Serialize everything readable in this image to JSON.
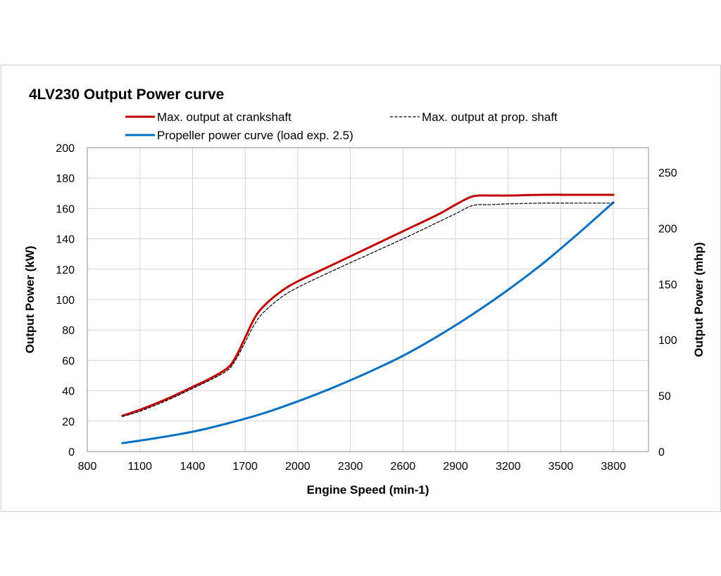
{
  "chart_data": {
    "type": "line",
    "title": "4LV230 Output Power curve",
    "xlabel": "Engine Speed (min-1)",
    "ylabel": "Output Power (kW)",
    "y2label": "Output Power (mhp)",
    "xlim": [
      800,
      4000
    ],
    "ylim": [
      0,
      200
    ],
    "y2lim": [
      0,
      272
    ],
    "xticks": [
      "800",
      "1100",
      "1400",
      "1700",
      "2000",
      "2300",
      "2600",
      "2900",
      "3200",
      "3500",
      "3800"
    ],
    "yticks": [
      "0",
      "20",
      "40",
      "60",
      "80",
      "100",
      "120",
      "140",
      "160",
      "180",
      "200"
    ],
    "y2ticks": [
      "0",
      "50",
      "100",
      "150",
      "200",
      "250"
    ],
    "grid": true,
    "legend_position": "top",
    "series": [
      {
        "name": "Max. output at crankshaft",
        "color": "#c00000",
        "style": "solid",
        "x": [
          1000,
          1100,
          1200,
          1300,
          1400,
          1500,
          1600,
          1650,
          1700,
          1750,
          1800,
          1900,
          2000,
          2200,
          2400,
          2600,
          2800,
          2900,
          3000,
          3100,
          3200,
          3400,
          3600,
          3800
        ],
        "y": [
          23.5,
          27.5,
          32,
          37,
          42.5,
          48,
          55,
          63,
          75,
          87,
          95,
          105,
          112,
          123,
          134,
          145,
          156,
          162.5,
          168,
          168.5,
          168.5,
          169,
          169,
          169
        ]
      },
      {
        "name": "Max. output at prop. shaft",
        "color": "#000000",
        "style": "dashed",
        "x": [
          1000,
          1100,
          1200,
          1300,
          1400,
          1500,
          1600,
          1650,
          1700,
          1750,
          1800,
          1900,
          2000,
          2200,
          2400,
          2600,
          2800,
          2900,
          3000,
          3100,
          3200,
          3400,
          3600,
          3800
        ],
        "y": [
          23,
          26.5,
          31,
          36,
          41.5,
          47,
          53.5,
          61,
          72,
          83,
          91,
          101,
          108,
          119,
          129.5,
          140,
          151,
          156.5,
          162,
          162.5,
          163,
          163.5,
          163.5,
          163.5
        ]
      },
      {
        "name": "Propeller power curve (load exp. 2.5)",
        "color": "#0070c0",
        "style": "solid",
        "x": [
          1000,
          1200,
          1400,
          1600,
          1800,
          2000,
          2200,
          2400,
          2600,
          2800,
          3000,
          3200,
          3400,
          3600,
          3800
        ],
        "y": [
          5.5,
          9,
          13,
          18.5,
          25,
          33,
          42,
          52,
          63,
          76,
          90.5,
          106.5,
          124,
          143.5,
          164
        ]
      }
    ]
  }
}
